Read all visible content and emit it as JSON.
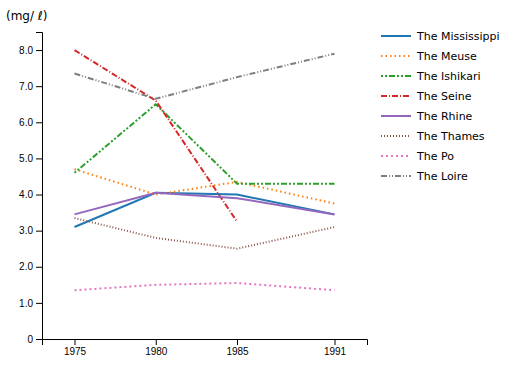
{
  "chart_data": {
    "type": "line",
    "ylabel": "(mg/ ℓ)",
    "x": [
      1975,
      1980,
      1985,
      1991
    ],
    "series": [
      {
        "name": "The Mississippi",
        "values": [
          3.1,
          4.05,
          4.0,
          3.45
        ],
        "line_style": "solid"
      },
      {
        "name": "The Meuse",
        "values": [
          4.7,
          4.0,
          4.35,
          3.75
        ],
        "line_style": "dotted"
      },
      {
        "name": "The Ishikari",
        "values": [
          4.6,
          6.5,
          4.3,
          4.3
        ],
        "line_style": "dotdotdash"
      },
      {
        "name": "The Seine",
        "values": [
          8.0,
          6.6,
          3.25,
          null
        ],
        "line_style": "dashdot"
      },
      {
        "name": "The Rhine",
        "values": [
          3.45,
          4.05,
          3.9,
          3.45
        ],
        "line_style": "solid"
      },
      {
        "name": "The Thames",
        "values": [
          3.35,
          2.8,
          2.5,
          3.1
        ],
        "line_style": "densedot"
      },
      {
        "name": "The Po",
        "values": [
          1.35,
          1.5,
          1.55,
          1.35
        ],
        "line_style": "loosedot"
      },
      {
        "name": "The Loire",
        "values": [
          7.35,
          6.65,
          7.25,
          7.9
        ],
        "line_style": "dashdotdash"
      }
    ],
    "xlim": [
      1973,
      1993
    ],
    "xticks": [
      1975,
      1980,
      1985,
      1991
    ],
    "ylim": [
      0,
      8.5
    ],
    "yticks": [
      0,
      {
        "value": 1.0,
        "label": "1.0"
      },
      {
        "value": 2.0,
        "label": "2.0"
      },
      {
        "value": 3.0,
        "label": "3.0"
      },
      {
        "value": 4.0,
        "label": "4.0"
      },
      {
        "value": 5.0,
        "label": "5.0"
      },
      {
        "value": 6.0,
        "label": "6.0"
      },
      {
        "value": 7.0,
        "label": "7.0"
      },
      {
        "value": 8.0,
        "label": "8.0"
      }
    ],
    "grid": false,
    "legend": "right"
  }
}
